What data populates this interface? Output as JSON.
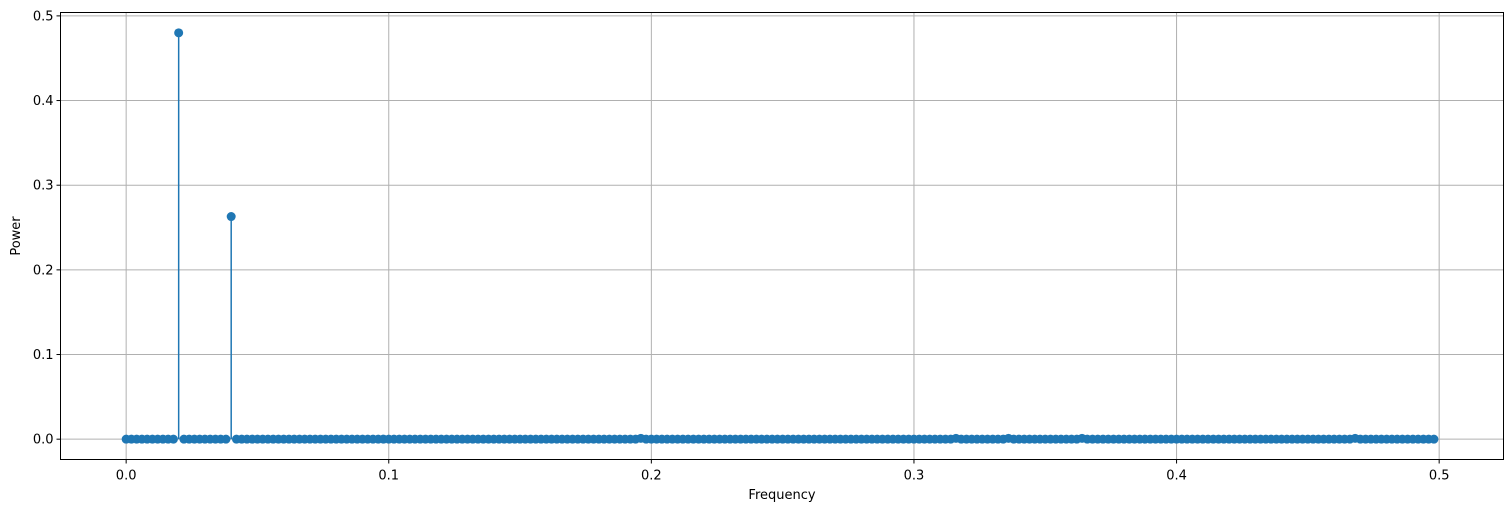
{
  "chart_data": {
    "type": "stem",
    "title": "",
    "xlabel": "Frequency",
    "ylabel": "Power",
    "xlim": [
      -0.025,
      0.5245
    ],
    "ylim": [
      -0.024,
      0.504
    ],
    "xticks": [
      0.0,
      0.1,
      0.2,
      0.3,
      0.4,
      0.5
    ],
    "xtick_labels": [
      "0.0",
      "0.1",
      "0.2",
      "0.3",
      "0.4",
      "0.5"
    ],
    "yticks": [
      0.0,
      0.1,
      0.2,
      0.3,
      0.4,
      0.5
    ],
    "ytick_labels": [
      "0.0",
      "0.1",
      "0.2",
      "0.3",
      "0.4",
      "0.5"
    ],
    "grid": true,
    "color": "#1f77b4",
    "frequency_start": 0.0,
    "frequency_step": 0.002,
    "frequency_count": 250,
    "baseline_value": 0.0,
    "peaks": [
      {
        "x": 0.02,
        "y": 0.48
      },
      {
        "x": 0.04,
        "y": 0.263
      },
      {
        "x": 0.196,
        "y": 0.001
      },
      {
        "x": 0.316,
        "y": 0.001
      },
      {
        "x": 0.336,
        "y": 0.001
      },
      {
        "x": 0.364,
        "y": 0.001
      },
      {
        "x": 0.468,
        "y": 0.001
      }
    ]
  }
}
